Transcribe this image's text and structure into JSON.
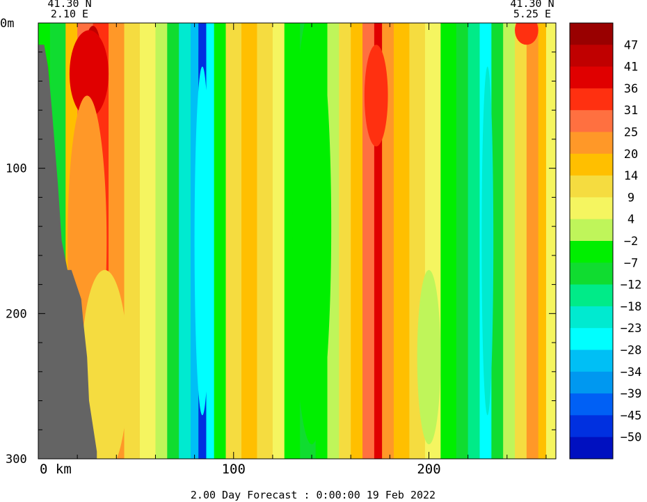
{
  "chart_data": {
    "type": "heatmap",
    "title": "",
    "xlabel": "",
    "ylabel": "",
    "x_unit": "km",
    "y_unit": "m",
    "xlim": [
      0,
      265
    ],
    "ylim": [
      0,
      300
    ],
    "y_inverted": true,
    "x_ticks": [
      0,
      100,
      200
    ],
    "x_tick_labels": [
      "0 km",
      "100",
      "200"
    ],
    "y_ticks": [
      0,
      100,
      200,
      300
    ],
    "y_tick_labels": [
      "0m",
      "100",
      "200",
      "300"
    ],
    "start_point": {
      "lat": "41.30 N",
      "lon": "2.10 E"
    },
    "end_point": {
      "lat": "41.30 N",
      "lon": "5.25 E"
    },
    "footer": "2.00 Day Forecast :  0:00:00  19 Feb 2022",
    "colorbar": {
      "labels": [
        "47",
        "41",
        "36",
        "31",
        "25",
        "20",
        "14",
        "9",
        "4",
        "-2",
        "-7",
        "-12",
        "-18",
        "-23",
        "-28",
        "-34",
        "-39",
        "-45",
        "-50"
      ],
      "colors": [
        "#990000",
        "#c00000",
        "#e00000",
        "#ff3010",
        "#ff7040",
        "#ff9828",
        "#ffbf00",
        "#f5dc40",
        "#f5f560",
        "#bff55a",
        "#00ef00",
        "#10dc30",
        "#00eb88",
        "#00ead0",
        "#00ffff",
        "#00bff5",
        "#0098f0",
        "#0060f5",
        "#0030e0",
        "#0010c0"
      ]
    },
    "land_color": "#646464",
    "columns": [
      {
        "x": [
          0,
          6
        ],
        "value": -7
      },
      {
        "x": [
          6,
          14
        ],
        "value": -12
      },
      {
        "x": [
          14,
          20
        ],
        "value": 14
      },
      {
        "x": [
          20,
          28
        ],
        "value": 25
      },
      {
        "x": [
          28,
          36
        ],
        "value": 31
      },
      {
        "x": [
          36,
          44
        ],
        "value": 20
      },
      {
        "x": [
          44,
          52
        ],
        "value": 9
      },
      {
        "x": [
          52,
          60
        ],
        "value": 4
      },
      {
        "x": [
          60,
          66
        ],
        "value": -2
      },
      {
        "x": [
          66,
          72
        ],
        "value": -12
      },
      {
        "x": [
          72,
          78
        ],
        "value": -23
      },
      {
        "x": [
          78,
          82
        ],
        "value": -34
      },
      {
        "x": [
          82,
          86
        ],
        "value": -50
      },
      {
        "x": [
          86,
          90
        ],
        "value": -28
      },
      {
        "x": [
          90,
          96
        ],
        "value": -7
      },
      {
        "x": [
          96,
          104
        ],
        "value": 9
      },
      {
        "x": [
          104,
          112
        ],
        "value": 14
      },
      {
        "x": [
          112,
          120
        ],
        "value": 9
      },
      {
        "x": [
          120,
          126
        ],
        "value": 4
      },
      {
        "x": [
          126,
          134
        ],
        "value": -7
      },
      {
        "x": [
          134,
          142
        ],
        "value": -12
      },
      {
        "x": [
          142,
          148
        ],
        "value": -7
      },
      {
        "x": [
          148,
          154
        ],
        "value": -2
      },
      {
        "x": [
          154,
          160
        ],
        "value": 9
      },
      {
        "x": [
          160,
          166
        ],
        "value": 14
      },
      {
        "x": [
          166,
          172
        ],
        "value": 25
      },
      {
        "x": [
          172,
          176
        ],
        "value": 36
      },
      {
        "x": [
          176,
          182
        ],
        "value": 20
      },
      {
        "x": [
          182,
          190
        ],
        "value": 14
      },
      {
        "x": [
          190,
          198
        ],
        "value": 9
      },
      {
        "x": [
          198,
          206
        ],
        "value": 4
      },
      {
        "x": [
          206,
          214
        ],
        "value": -7
      },
      {
        "x": [
          214,
          220
        ],
        "value": -12
      },
      {
        "x": [
          220,
          226
        ],
        "value": -18
      },
      {
        "x": [
          226,
          232
        ],
        "value": -28
      },
      {
        "x": [
          232,
          238
        ],
        "value": -12
      },
      {
        "x": [
          238,
          244
        ],
        "value": -2
      },
      {
        "x": [
          244,
          250
        ],
        "value": 9
      },
      {
        "x": [
          250,
          256
        ],
        "value": 20
      },
      {
        "x": [
          256,
          260
        ],
        "value": 14
      },
      {
        "x": [
          260,
          265
        ],
        "value": 4
      }
    ],
    "blobs": [
      {
        "x": 28,
        "y": 20,
        "value": 41,
        "rx": 4,
        "ry": 18
      },
      {
        "x": 26,
        "y": 35,
        "value": 36,
        "rx": 10,
        "ry": 30
      },
      {
        "x": 173,
        "y": 45,
        "value": 41,
        "rx": 2,
        "ry": 18
      },
      {
        "x": 173,
        "y": 50,
        "value": 31,
        "rx": 6,
        "ry": 35
      },
      {
        "x": 84,
        "y": 30,
        "value": -50,
        "rx": 2,
        "ry": 40
      },
      {
        "x": 84,
        "y": 150,
        "value": -28,
        "rx": 4,
        "ry": 120
      },
      {
        "x": 140,
        "y": 140,
        "value": -7,
        "rx": 10,
        "ry": 150
      },
      {
        "x": 25,
        "y": 150,
        "value": 20,
        "rx": 10,
        "ry": 100
      },
      {
        "x": 34,
        "y": 240,
        "value": 9,
        "rx": 12,
        "ry": 70
      },
      {
        "x": 200,
        "y": 230,
        "value": -2,
        "rx": 6,
        "ry": 60
      },
      {
        "x": 230,
        "y": 150,
        "value": -23,
        "rx": 3,
        "ry": 120
      },
      {
        "x": 250,
        "y": 5,
        "value": 31,
        "rx": 6,
        "ry": 10
      }
    ],
    "land_polygon": [
      [
        0,
        0
      ],
      [
        0,
        300
      ],
      [
        30,
        300
      ],
      [
        30,
        295
      ],
      [
        26,
        260
      ],
      [
        25,
        230
      ],
      [
        23,
        205
      ],
      [
        22,
        190
      ],
      [
        17,
        170
      ],
      [
        15,
        170
      ],
      [
        12,
        150
      ],
      [
        10,
        110
      ],
      [
        7,
        60
      ],
      [
        5,
        30
      ],
      [
        3,
        15
      ],
      [
        0,
        15
      ]
    ]
  }
}
